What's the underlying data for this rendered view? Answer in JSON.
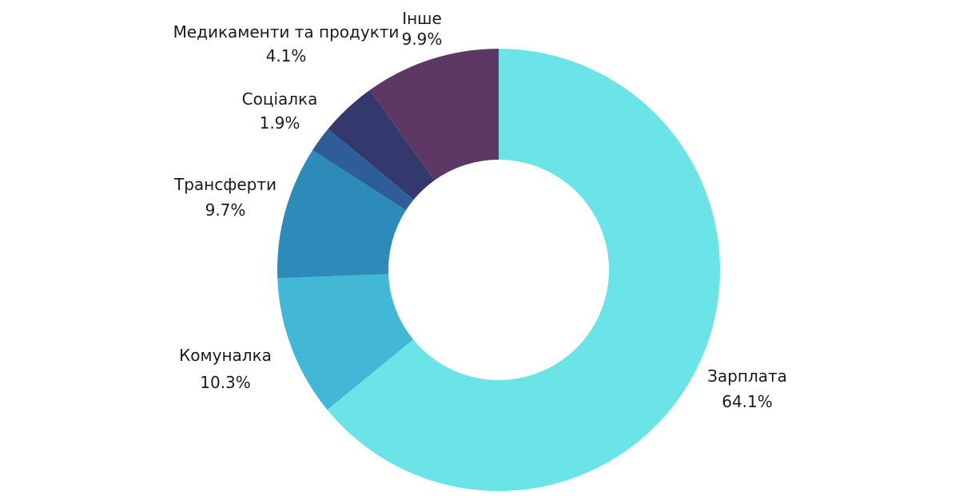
{
  "chart_data": {
    "type": "pie",
    "variant": "donut",
    "title": "",
    "slices": [
      {
        "label": "Зарплата",
        "value": 64.1,
        "display": "64.1%",
        "color": "#6BE4E8"
      },
      {
        "label": "Комуналка",
        "value": 10.3,
        "display": "10.3%",
        "color": "#42B8D6"
      },
      {
        "label": "Трансферти",
        "value": 9.7,
        "display": "9.7%",
        "color": "#2D8BBA"
      },
      {
        "label": "Соціалка",
        "value": 1.9,
        "display": "1.9%",
        "color": "#2E5E97"
      },
      {
        "label": "Медикаменти та продукти",
        "value": 4.1,
        "display": "4.1%",
        "color": "#33396C"
      },
      {
        "label": "Інше",
        "value": 9.9,
        "display": "9.9%",
        "color": "#5D3865"
      }
    ]
  }
}
